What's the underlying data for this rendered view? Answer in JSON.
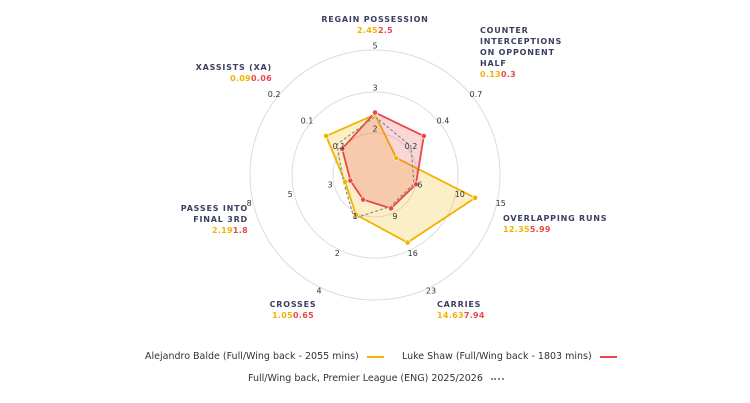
{
  "chart_data": {
    "type": "radar",
    "axes": [
      {
        "name": "REGAIN POSSESSION",
        "ticks": [
          2,
          3,
          5
        ]
      },
      {
        "name": "COUNTER INTERCEPTIONS ON OPPONENT HALF",
        "ticks": [
          0.2,
          0.4,
          0.7
        ]
      },
      {
        "name": "OVERLAPPING RUNS",
        "ticks": [
          6,
          10,
          15
        ]
      },
      {
        "name": "CARRIES",
        "ticks": [
          9,
          16,
          23
        ]
      },
      {
        "name": "CROSSES",
        "ticks": [
          1,
          2,
          4
        ]
      },
      {
        "name": "PASSES INTO FINAL 3RD",
        "ticks": [
          3,
          5,
          8
        ]
      },
      {
        "name": "XASSISTS (XA)",
        "ticks": [
          {
            "value": 0.06,
            "label": "0.1"
          },
          {
            "value": 0.12,
            "label": "0.1"
          },
          0.2
        ]
      }
    ],
    "series": [
      {
        "name": "Alejandro Balde (Full/Wing back - 2055 mins)",
        "color": "#f0b400",
        "values": [
          2.45,
          0.13,
          12.35,
          14.63,
          1.05,
          2.19,
          0.09
        ]
      },
      {
        "name": "Luke Shaw (Full/Wing back - 1803 mins)",
        "color": "#e8484a",
        "values": [
          2.5,
          0.3,
          5.99,
          7.94,
          0.65,
          1.8,
          0.06
        ]
      },
      {
        "name": "Full/Wing back, Premier League (ENG) 2025/2026",
        "color": "#8a8a8a",
        "dashed": true,
        "values": [
          2.4,
          0.22,
          5.7,
          7.5,
          1.15,
          2.3,
          0.07
        ]
      }
    ]
  }
}
